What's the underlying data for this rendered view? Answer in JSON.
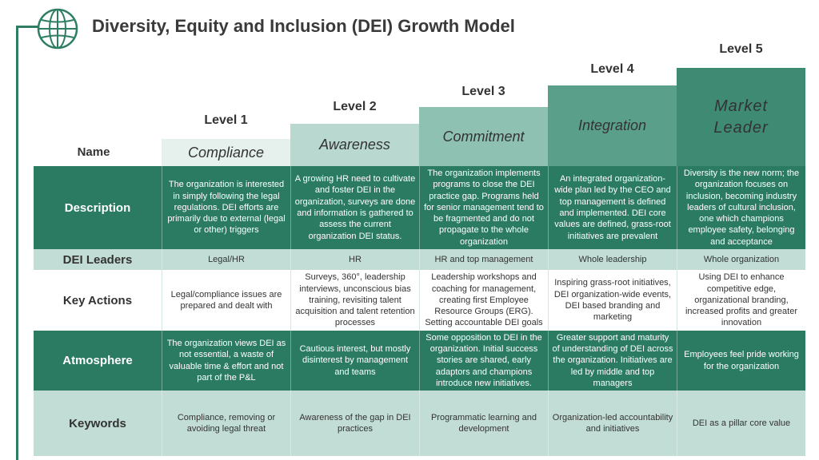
{
  "title": "Diversity, Equity and Inclusion (DEI) Growth Model",
  "levels": [
    {
      "label": "Level 1",
      "name": "Compliance"
    },
    {
      "label": "Level 2",
      "name": "Awareness"
    },
    {
      "label": "Level 3",
      "name": "Commitment"
    },
    {
      "label": "Level 4",
      "name": "Integration"
    },
    {
      "label": "Level 5",
      "name_line1": "Market",
      "name_line2": "Leader"
    }
  ],
  "row_name_label": "Name",
  "rows": {
    "description": {
      "label": "Description",
      "cells": [
        "The organization is interested in simply following the legal regulations. DEI efforts are primarily due to external (legal or other) triggers",
        "A growing HR need to cultivate and foster DEI in the organization, surveys are done and information is gathered to assess the current organization DEI status.",
        "The organization implements programs to close the DEI practice gap. Programs held for senior management tend to be fragmented and do not propagate to the whole organization",
        "An integrated organization-wide plan led by the CEO and top management is defined and implemented. DEI core values are defined, grass-root initiatives are prevalent",
        "Diversity is the new norm; the organization focuses on inclusion, becoming industry leaders of cultural inclusion, one which champions employee safety, belonging and acceptance"
      ]
    },
    "leaders": {
      "label": "DEI Leaders",
      "cells": [
        "Legal/HR",
        "HR",
        "HR and top management",
        "Whole leadership",
        "Whole organization"
      ]
    },
    "actions": {
      "label": "Key Actions",
      "cells": [
        "Legal/compliance issues are prepared and dealt with",
        "Surveys, 360°, leadership interviews, unconscious bias training, revisiting talent acquisition and talent retention processes",
        "Leadership workshops and coaching for management, creating first Employee Resource Groups (ERG). Setting accountable DEI goals",
        "Inspiring grass-root initiatives, DEI organization-wide events, DEI based branding and marketing",
        "Using DEI to enhance competitive edge, organizational branding, increased profits and greater innovation"
      ]
    },
    "atmosphere": {
      "label": "Atmosphere",
      "cells": [
        "The organization views DEI as not essential, a waste of valuable time & effort and not part of the P&L",
        "Cautious interest, but mostly disinterest by management and teams",
        "Some opposition to DEI in the organization. Initial success stories are shared, early adaptors and champions introduce new initiatives.",
        "Greater support and maturity of understanding of DEI across the organization. Initiatives are led by middle and top managers",
        "Employees feel pride working for the organization"
      ]
    },
    "keywords": {
      "label": "Keywords",
      "cells": [
        "Compliance, removing or avoiding legal threat",
        "Awareness of the gap in DEI practices",
        "Programmatic learning and development",
        "Organization-led accountability and initiatives",
        "DEI as a pillar core value"
      ]
    }
  },
  "colors": {
    "accent": "#2b7a62",
    "light": "#c2ddd5"
  },
  "icons": {
    "logo": "globe-icon"
  }
}
